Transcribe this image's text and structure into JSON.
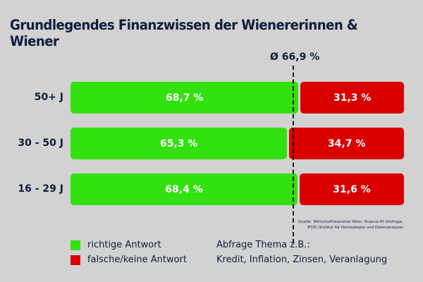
{
  "chart_data": {
    "type": "bar",
    "stacked": true,
    "orientation": "horizontal",
    "title": "Grundlegendes Finanzwissen der Wienererinnen & Wiener",
    "categories": [
      "50+ J",
      "30 - 50 J",
      "16 - 29 J"
    ],
    "series": [
      {
        "name": "richtige Antwort",
        "color": "#33e010",
        "values": [
          68.7,
          65.3,
          68.4
        ],
        "labels": [
          "68,7 %",
          "65,3 %",
          "68,4 %"
        ]
      },
      {
        "name": "falsche/keine Antwort",
        "color": "#d90000",
        "values": [
          31.3,
          34.7,
          31.6
        ],
        "labels": [
          "31,3 %",
          "34,7 %",
          "31,6 %"
        ]
      }
    ],
    "average": {
      "value": 66.9,
      "label": "Ø 66,9 %"
    },
    "xlim": [
      0,
      100
    ],
    "source": [
      "Quelle: Wirtschaftskammer Wien, finance-fit Umfrage,",
      "IFDD (Institut für Demoskopie und Datenanalyse)"
    ],
    "topic": {
      "heading": "Abfrage Thema z.B.:",
      "items": "Kredit, Inflation, Zinsen, Veranlagung"
    }
  }
}
